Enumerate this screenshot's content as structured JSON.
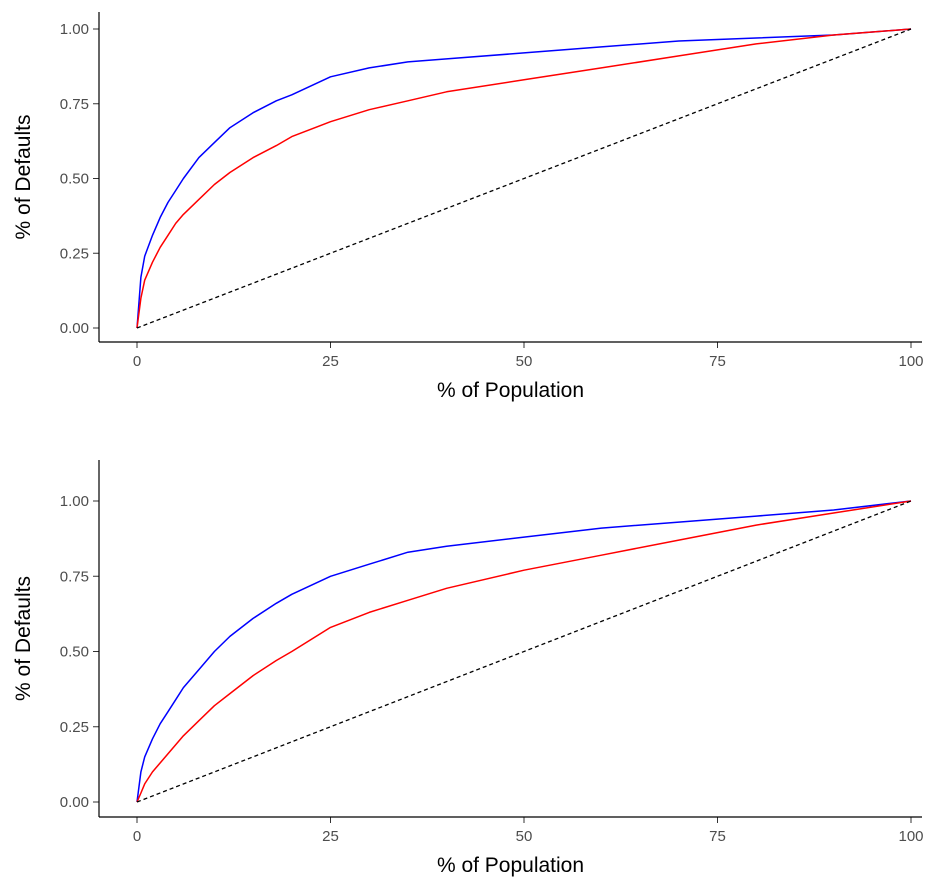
{
  "chart_data": [
    {
      "type": "line",
      "title": "",
      "xlabel": "% of Population",
      "ylabel": "% of Defaults",
      "xlim": [
        0,
        100
      ],
      "ylim": [
        0,
        1
      ],
      "x_ticks": [
        "0",
        "25",
        "50",
        "75",
        "100"
      ],
      "y_ticks": [
        "0.00",
        "0.25",
        "0.50",
        "0.75",
        "1.00"
      ],
      "grid": false,
      "legend": "none",
      "series": [
        {
          "color": "#0000ff",
          "style": "solid",
          "x": [
            0,
            0.5,
            1,
            2,
            3,
            4,
            5,
            6,
            8,
            10,
            12,
            15,
            18,
            20,
            25,
            30,
            35,
            40,
            50,
            60,
            70,
            80,
            90,
            100
          ],
          "y": [
            0,
            0.17,
            0.24,
            0.31,
            0.37,
            0.42,
            0.46,
            0.5,
            0.57,
            0.62,
            0.67,
            0.72,
            0.76,
            0.78,
            0.84,
            0.87,
            0.89,
            0.9,
            0.92,
            0.94,
            0.96,
            0.97,
            0.98,
            1.0
          ]
        },
        {
          "color": "#ff0000",
          "style": "solid",
          "x": [
            0,
            0.5,
            1,
            2,
            3,
            4,
            5,
            6,
            8,
            10,
            12,
            15,
            18,
            20,
            25,
            30,
            35,
            40,
            50,
            60,
            70,
            80,
            90,
            100
          ],
          "y": [
            0,
            0.1,
            0.16,
            0.22,
            0.27,
            0.31,
            0.35,
            0.38,
            0.43,
            0.48,
            0.52,
            0.57,
            0.61,
            0.64,
            0.69,
            0.73,
            0.76,
            0.79,
            0.83,
            0.87,
            0.91,
            0.95,
            0.98,
            1.0
          ]
        },
        {
          "color": "#000000",
          "style": "dashed",
          "x": [
            0,
            100
          ],
          "y": [
            0,
            1
          ]
        }
      ]
    },
    {
      "type": "line",
      "title": "",
      "xlabel": "% of Population",
      "ylabel": "% of Defaults",
      "xlim": [
        0,
        100
      ],
      "ylim": [
        0,
        1
      ],
      "x_ticks": [
        "0",
        "25",
        "50",
        "75",
        "100"
      ],
      "y_ticks": [
        "0.00",
        "0.25",
        "0.50",
        "0.75",
        "1.00"
      ],
      "grid": false,
      "legend": "none",
      "series": [
        {
          "color": "#0000ff",
          "style": "solid",
          "x": [
            0,
            0.5,
            1,
            2,
            3,
            4,
            5,
            6,
            8,
            10,
            12,
            15,
            18,
            20,
            25,
            30,
            35,
            40,
            50,
            60,
            70,
            80,
            90,
            100
          ],
          "y": [
            0,
            0.1,
            0.15,
            0.21,
            0.26,
            0.3,
            0.34,
            0.38,
            0.44,
            0.5,
            0.55,
            0.61,
            0.66,
            0.69,
            0.75,
            0.79,
            0.83,
            0.85,
            0.88,
            0.91,
            0.93,
            0.95,
            0.97,
            1.0
          ]
        },
        {
          "color": "#ff0000",
          "style": "solid",
          "x": [
            0,
            0.5,
            1,
            2,
            3,
            4,
            5,
            6,
            8,
            10,
            12,
            15,
            18,
            20,
            25,
            30,
            35,
            40,
            50,
            60,
            70,
            80,
            90,
            100
          ],
          "y": [
            0,
            0.03,
            0.06,
            0.1,
            0.13,
            0.16,
            0.19,
            0.22,
            0.27,
            0.32,
            0.36,
            0.42,
            0.47,
            0.5,
            0.58,
            0.63,
            0.67,
            0.71,
            0.77,
            0.82,
            0.87,
            0.92,
            0.96,
            1.0
          ]
        },
        {
          "color": "#000000",
          "style": "dashed",
          "x": [
            0,
            100
          ],
          "y": [
            0,
            1
          ]
        }
      ]
    }
  ]
}
